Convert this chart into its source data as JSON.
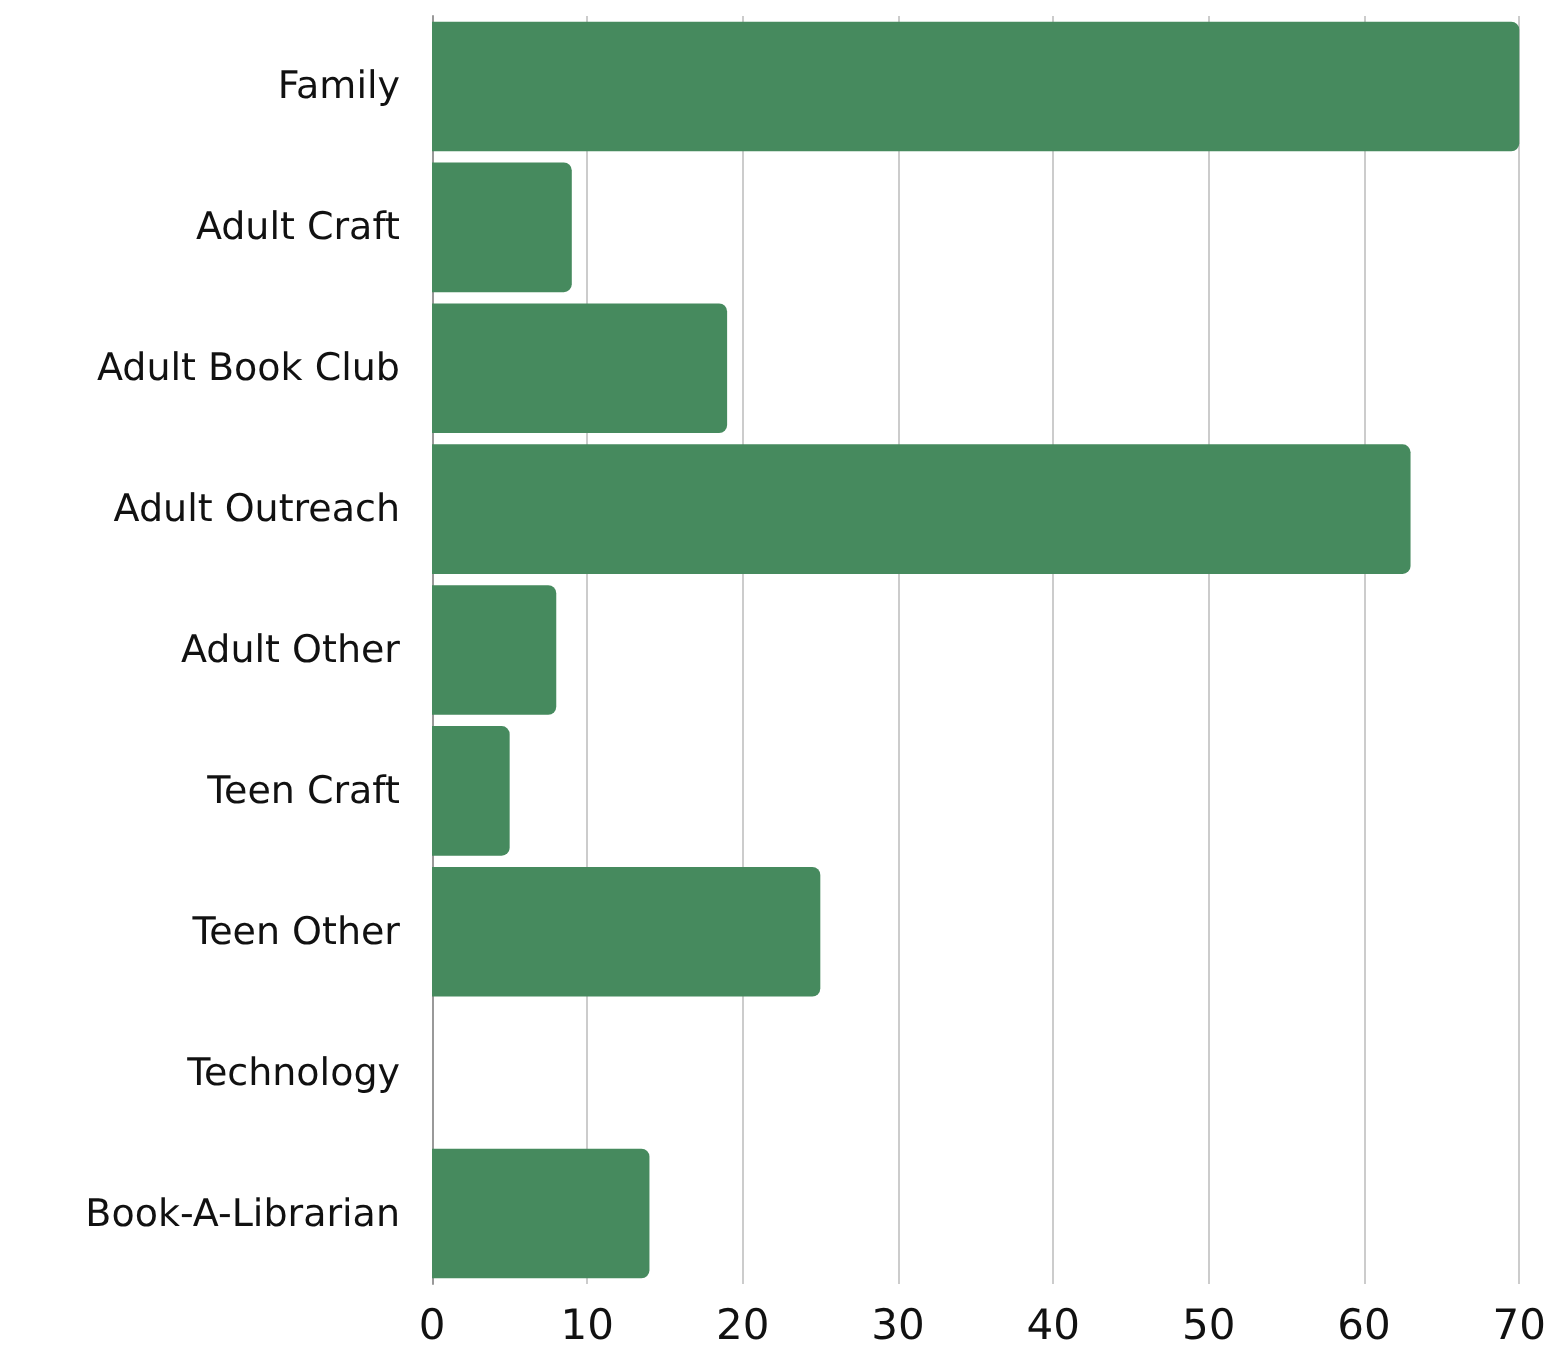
{
  "chart_data": {
    "type": "bar",
    "orientation": "horizontal",
    "categories": [
      "Family",
      "Adult Craft",
      "Adult Book Club",
      "Adult Outreach",
      "Adult Other",
      "Teen Craft",
      "Teen Other",
      "Technology",
      "Book-A-Librarian"
    ],
    "values": [
      70,
      9,
      19,
      63,
      8,
      5,
      25,
      0,
      14
    ],
    "color": "#468a5e",
    "xlim": [
      0,
      70
    ],
    "xticks": [
      0,
      10,
      20,
      30,
      40,
      50,
      60,
      70
    ],
    "grid": "x"
  }
}
